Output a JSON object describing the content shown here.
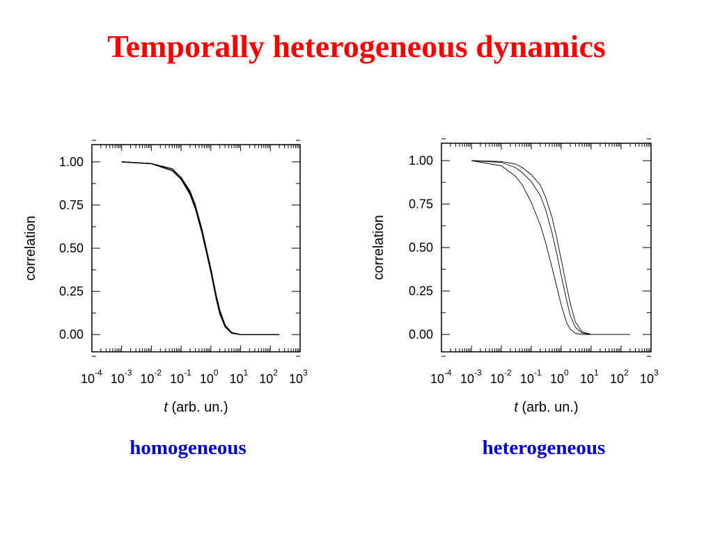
{
  "title": "Temporally heterogeneous dynamics",
  "chart_data": [
    {
      "type": "line",
      "caption": "homogeneous",
      "xlabel_italic": "t",
      "xlabel_rest": " (arb. un.)",
      "ylabel": "correlation",
      "x_scale": "log",
      "xlim": [
        0.0001,
        1000
      ],
      "ylim": [
        -0.1,
        1.1
      ],
      "x_ticks": [
        {
          "base": "10",
          "exp": "-4"
        },
        {
          "base": "10",
          "exp": "-3"
        },
        {
          "base": "10",
          "exp": "-2"
        },
        {
          "base": "10",
          "exp": "-1"
        },
        {
          "base": "10",
          "exp": "0"
        },
        {
          "base": "10",
          "exp": "1"
        },
        {
          "base": "10",
          "exp": "2"
        },
        {
          "base": "10",
          "exp": "3"
        }
      ],
      "y_ticks": [
        "0.00",
        "0.25",
        "0.50",
        "0.75",
        "1.00"
      ],
      "series": [
        {
          "x": [
            0.001,
            0.01,
            0.05,
            0.1,
            0.2,
            0.3,
            0.5,
            0.7,
            1.0,
            1.5,
            2,
            3,
            5,
            10,
            30,
            100,
            200
          ],
          "y": [
            1.0,
            0.99,
            0.95,
            0.9,
            0.82,
            0.74,
            0.6,
            0.49,
            0.37,
            0.22,
            0.13,
            0.05,
            0.01,
            0.0,
            0.0,
            0.0,
            0.0
          ]
        },
        {
          "x": [
            0.001,
            0.01,
            0.05,
            0.1,
            0.2,
            0.3,
            0.5,
            0.7,
            1.0,
            1.5,
            2,
            3,
            5,
            10,
            30,
            100,
            200
          ],
          "y": [
            1.0,
            0.99,
            0.95,
            0.9,
            0.81,
            0.73,
            0.59,
            0.48,
            0.36,
            0.21,
            0.12,
            0.045,
            0.008,
            0.0,
            0.0,
            0.0,
            0.0
          ]
        },
        {
          "x": [
            0.001,
            0.01,
            0.05,
            0.1,
            0.2,
            0.3,
            0.5,
            0.7,
            1.0,
            1.5,
            2,
            3,
            5,
            10,
            30,
            100,
            200
          ],
          "y": [
            1.0,
            0.99,
            0.96,
            0.91,
            0.83,
            0.75,
            0.61,
            0.5,
            0.38,
            0.23,
            0.14,
            0.055,
            0.012,
            0.0,
            0.0,
            0.0,
            0.0
          ]
        }
      ]
    },
    {
      "type": "line",
      "caption": "heterogeneous",
      "xlabel_italic": "t",
      "xlabel_rest": " (arb. un.)",
      "ylabel": "correlation",
      "x_scale": "log",
      "xlim": [
        0.0001,
        1000
      ],
      "ylim": [
        -0.1,
        1.1
      ],
      "x_ticks": [
        {
          "base": "10",
          "exp": "-4"
        },
        {
          "base": "10",
          "exp": "-3"
        },
        {
          "base": "10",
          "exp": "-2"
        },
        {
          "base": "10",
          "exp": "-1"
        },
        {
          "base": "10",
          "exp": "0"
        },
        {
          "base": "10",
          "exp": "1"
        },
        {
          "base": "10",
          "exp": "2"
        },
        {
          "base": "10",
          "exp": "3"
        }
      ],
      "y_ticks": [
        "0.00",
        "0.25",
        "0.50",
        "0.75",
        "1.00"
      ],
      "series": [
        {
          "x": [
            0.001,
            0.01,
            0.03,
            0.05,
            0.1,
            0.2,
            0.3,
            0.5,
            0.7,
            1.0,
            1.5,
            2,
            3,
            5,
            10,
            30,
            100,
            200
          ],
          "y": [
            1.0,
            0.97,
            0.91,
            0.86,
            0.76,
            0.63,
            0.53,
            0.38,
            0.28,
            0.17,
            0.07,
            0.03,
            0.006,
            0.0,
            0.0,
            0.0,
            0.0,
            0.0
          ]
        },
        {
          "x": [
            0.001,
            0.01,
            0.03,
            0.05,
            0.1,
            0.2,
            0.3,
            0.5,
            0.7,
            1.0,
            1.5,
            2,
            3,
            5,
            10,
            30,
            100,
            200
          ],
          "y": [
            1.0,
            0.99,
            0.96,
            0.93,
            0.88,
            0.8,
            0.72,
            0.58,
            0.47,
            0.34,
            0.2,
            0.11,
            0.04,
            0.008,
            0.0,
            0.0,
            0.0,
            0.0
          ]
        },
        {
          "x": [
            0.001,
            0.01,
            0.03,
            0.05,
            0.1,
            0.2,
            0.3,
            0.5,
            0.7,
            1.0,
            1.5,
            2,
            3,
            5,
            10,
            30,
            100,
            200
          ],
          "y": [
            1.0,
            0.995,
            0.98,
            0.96,
            0.92,
            0.86,
            0.79,
            0.67,
            0.56,
            0.43,
            0.28,
            0.18,
            0.07,
            0.015,
            0.001,
            0.0,
            0.0,
            0.0
          ]
        }
      ]
    }
  ]
}
